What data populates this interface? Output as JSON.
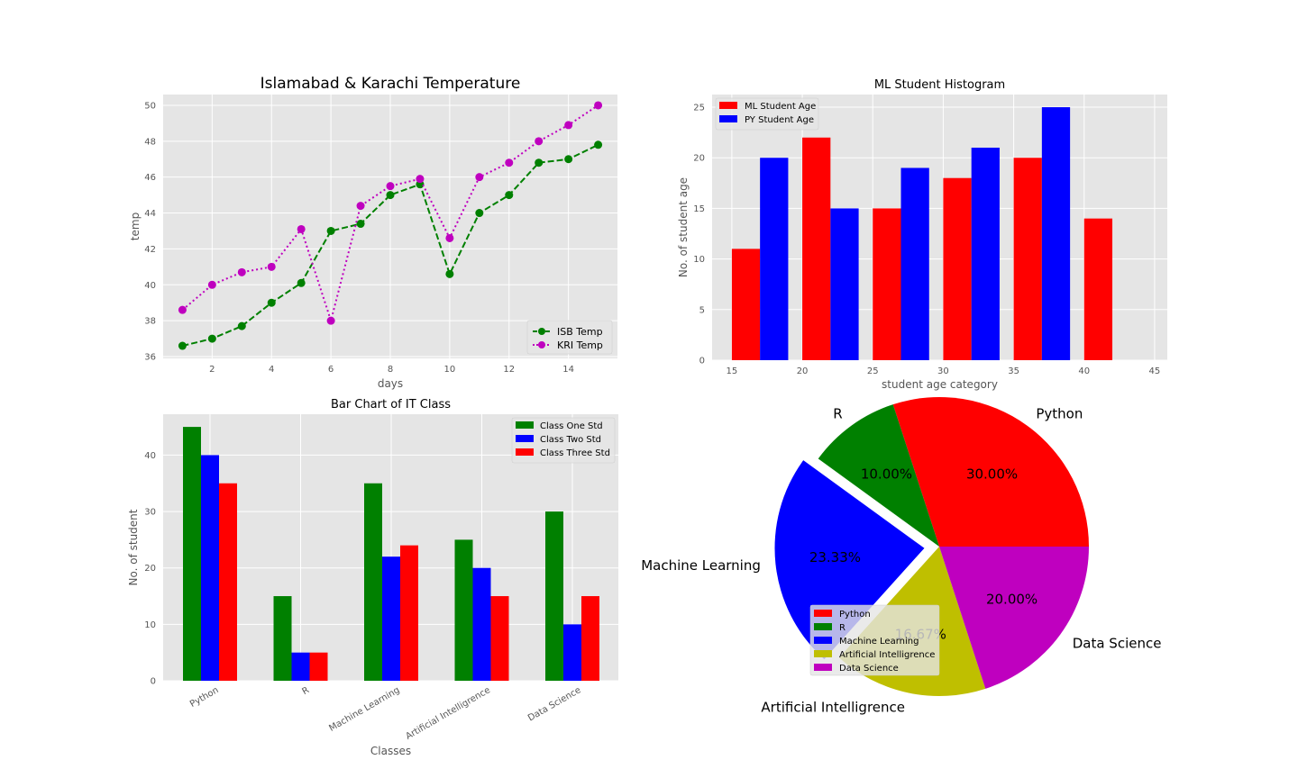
{
  "chart_data": [
    {
      "type": "line",
      "title": "Islamabad & Karachi Temperature",
      "xlabel": "days",
      "ylabel": "temp",
      "xlim": [
        0.35,
        15.65
      ],
      "ylim": [
        35.9,
        50.6
      ],
      "xticks": [
        2,
        4,
        6,
        8,
        10,
        12,
        14
      ],
      "yticks": [
        36,
        38,
        40,
        42,
        44,
        46,
        48,
        50
      ],
      "grid": true,
      "legend_position": "lower-right",
      "x": [
        1,
        2,
        3,
        4,
        5,
        6,
        7,
        8,
        9,
        10,
        11,
        12,
        13,
        14,
        15
      ],
      "series": [
        {
          "name": "ISB Temp",
          "color": "#008000",
          "linestyle": "dashed",
          "values": [
            36.6,
            37.0,
            37.7,
            39.0,
            40.1,
            43.0,
            43.4,
            45.0,
            45.6,
            40.6,
            44.0,
            45.0,
            46.8,
            47.0,
            47.8
          ]
        },
        {
          "name": "KRI Temp",
          "color": "#bf00bf",
          "linestyle": "dotted",
          "values": [
            38.6,
            40.0,
            40.7,
            41.0,
            43.1,
            38.0,
            44.4,
            45.5,
            45.9,
            42.6,
            46.0,
            46.8,
            48.0,
            48.9,
            50.0
          ]
        }
      ]
    },
    {
      "type": "bar",
      "title": "ML Student Histogram",
      "xlabel": "student age category",
      "ylabel": "No. of student age",
      "xlim": [
        13.6,
        45.9
      ],
      "ylim": [
        0,
        26.25
      ],
      "xticks": [
        15,
        20,
        25,
        30,
        35,
        40,
        45
      ],
      "yticks": [
        0,
        5,
        10,
        15,
        20,
        25
      ],
      "grid": true,
      "legend_position": "top-left",
      "series": [
        {
          "name": "ML Student Age",
          "color": "#ff0000",
          "bins": [
            [
              15,
              17
            ],
            [
              20,
              22
            ],
            [
              25,
              27
            ],
            [
              30,
              32
            ],
            [
              35,
              37
            ],
            [
              40,
              42
            ]
          ],
          "values": [
            11,
            22,
            15,
            18,
            20,
            14
          ]
        },
        {
          "name": "PY Student Age",
          "color": "#0000ff",
          "bins": [
            [
              17,
              19
            ],
            [
              22,
              24
            ],
            [
              27,
              29
            ],
            [
              32,
              34
            ],
            [
              37,
              39
            ]
          ],
          "values": [
            20,
            15,
            19,
            21,
            25
          ]
        }
      ]
    },
    {
      "type": "bar",
      "title": "Bar Chart of IT Class",
      "xlabel": "Classes",
      "ylabel": "No. of student",
      "ylim": [
        0,
        47.25
      ],
      "yticks": [
        0,
        10,
        20,
        30,
        40
      ],
      "grid": true,
      "legend_position": "top-right",
      "categories": [
        "Python",
        "R",
        "Machine Learning",
        "Artificial Intelligrence",
        "Data Science"
      ],
      "series": [
        {
          "name": "Class One Std",
          "color": "#008000",
          "values": [
            45,
            15,
            35,
            25,
            30
          ]
        },
        {
          "name": "Class Two Std",
          "color": "#0000ff",
          "values": [
            40,
            5,
            22,
            20,
            10
          ]
        },
        {
          "name": "Class Three Std",
          "color": "#ff0000",
          "values": [
            35,
            5,
            24,
            15,
            15
          ]
        }
      ]
    },
    {
      "type": "pie",
      "legend_position": "lower-left",
      "slices": [
        {
          "label": "Python",
          "pct_label": "30.00%",
          "value": 30.0,
          "color": "#ff0000",
          "explode": 0
        },
        {
          "label": "R",
          "pct_label": "10.00%",
          "value": 10.0,
          "color": "#008000",
          "explode": 0
        },
        {
          "label": "Machine Learning",
          "pct_label": "23.33%",
          "value": 23.33,
          "color": "#0000ff",
          "explode": 0.1
        },
        {
          "label": "Artificial Intelligrence",
          "pct_label": "16.67%",
          "value": 16.67,
          "color": "#bfbf00",
          "explode": 0
        },
        {
          "label": "Data Science",
          "pct_label": "20.00%",
          "value": 20.0,
          "color": "#bf00bf",
          "explode": 0
        }
      ]
    }
  ]
}
